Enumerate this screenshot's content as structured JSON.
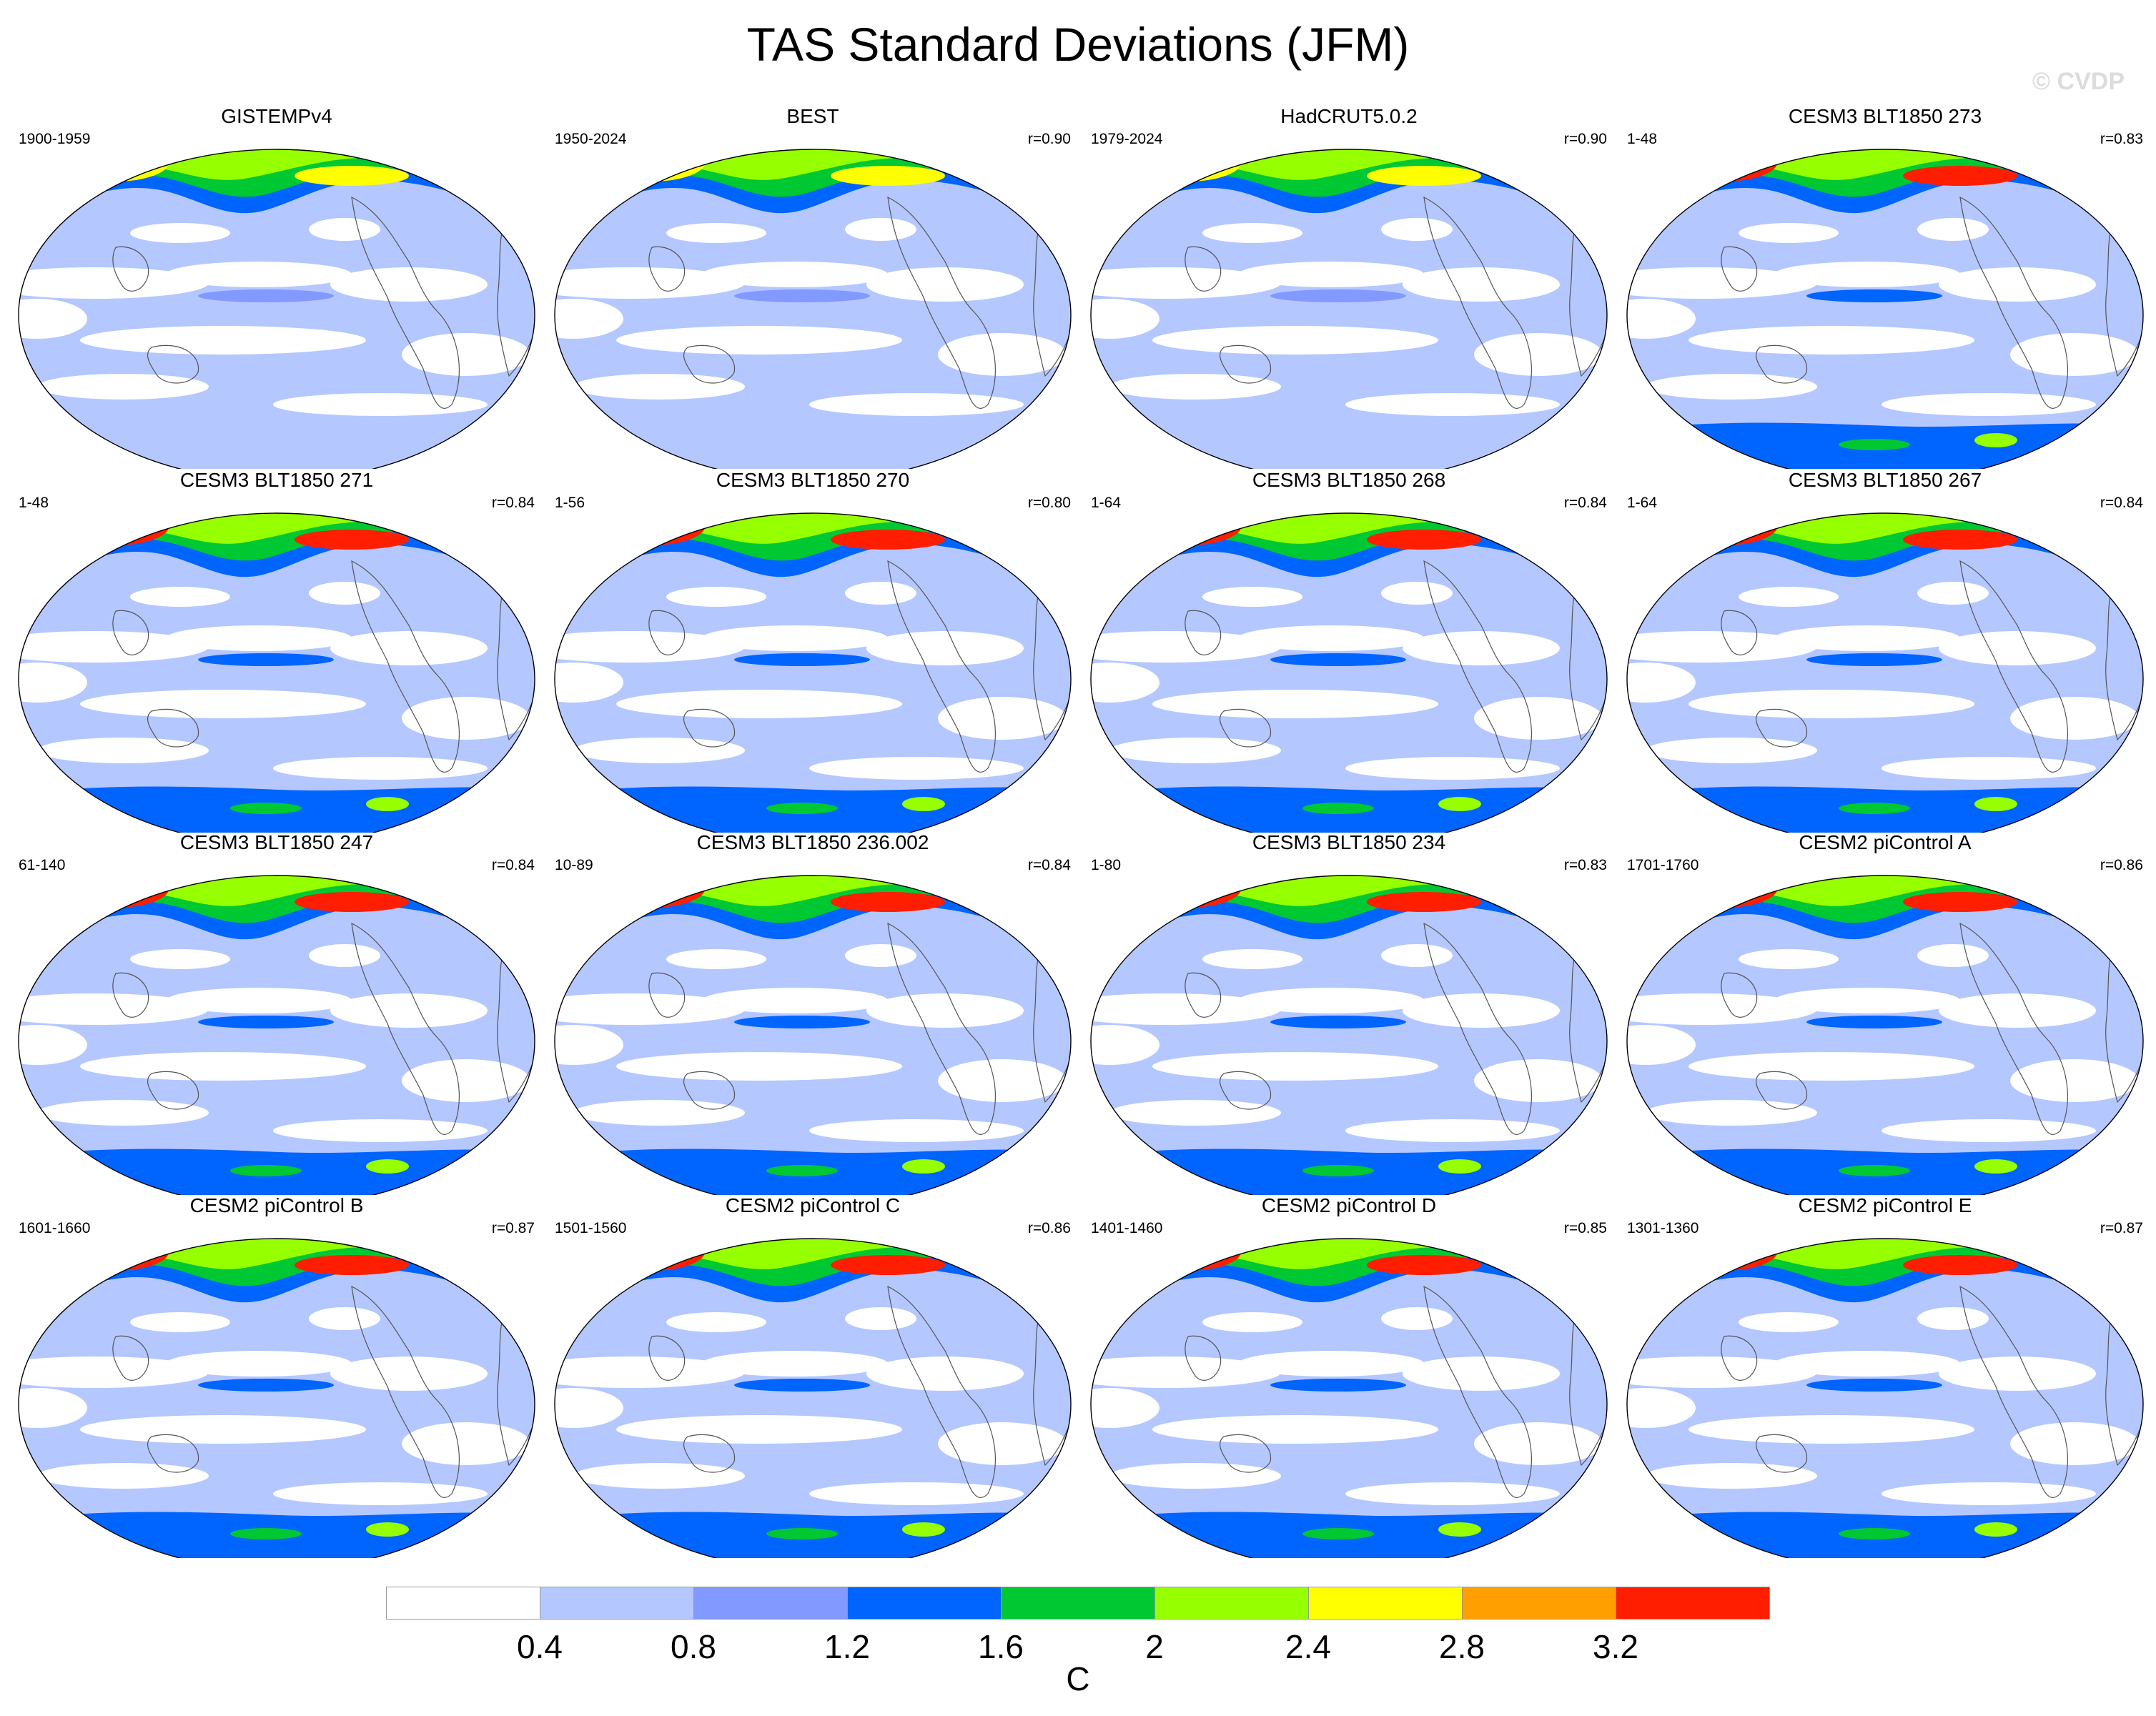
{
  "title": "TAS Standard Deviations (JFM)",
  "watermark": "© CVDP",
  "panels": [
    {
      "title": "GISTEMPv4",
      "years": "1900-1959",
      "corr": ""
    },
    {
      "title": "BEST",
      "years": "1950-2024",
      "corr": "r=0.90"
    },
    {
      "title": "HadCRUT5.0.2",
      "years": "1979-2024",
      "corr": "r=0.90"
    },
    {
      "title": "CESM3 BLT1850 273",
      "years": "1-48",
      "corr": "r=0.83"
    },
    {
      "title": "CESM3 BLT1850 271",
      "years": "1-48",
      "corr": "r=0.84"
    },
    {
      "title": "CESM3 BLT1850 270",
      "years": "1-56",
      "corr": "r=0.80"
    },
    {
      "title": "CESM3 BLT1850 268",
      "years": "1-64",
      "corr": "r=0.84"
    },
    {
      "title": "CESM3 BLT1850 267",
      "years": "1-64",
      "corr": "r=0.84"
    },
    {
      "title": "CESM3 BLT1850 247",
      "years": "61-140",
      "corr": "r=0.84"
    },
    {
      "title": "CESM3 BLT1850 236.002",
      "years": "10-89",
      "corr": "r=0.84"
    },
    {
      "title": "CESM3 BLT1850 234",
      "years": "1-80",
      "corr": "r=0.83"
    },
    {
      "title": "CESM2 piControl A",
      "years": "1701-1760",
      "corr": "r=0.86"
    },
    {
      "title": "CESM2 piControl B",
      "years": "1601-1660",
      "corr": "r=0.87"
    },
    {
      "title": "CESM2 piControl C",
      "years": "1501-1560",
      "corr": "r=0.86"
    },
    {
      "title": "CESM2 piControl D",
      "years": "1401-1460",
      "corr": "r=0.85"
    },
    {
      "title": "CESM2 piControl E",
      "years": "1301-1360",
      "corr": "r=0.87"
    }
  ],
  "colorbar": {
    "colors": [
      "#ffffff",
      "#b4c7ff",
      "#8299ff",
      "#0064ff",
      "#00c832",
      "#96ff00",
      "#ffff00",
      "#ffa000",
      "#ff1e00"
    ],
    "labels": [
      "0.4",
      "0.8",
      "1.2",
      "1.6",
      "2",
      "2.4",
      "2.8",
      "3.2"
    ],
    "unit": "C"
  }
}
